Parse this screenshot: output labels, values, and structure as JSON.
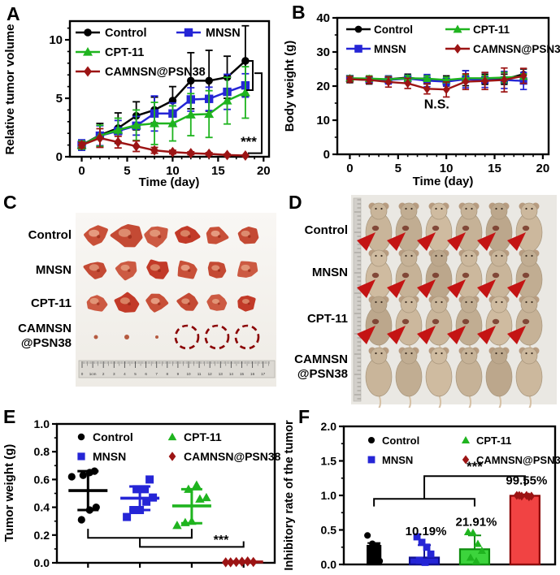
{
  "figure": {
    "background": "#ffffff"
  },
  "panels": {
    "A": {
      "label": "A"
    },
    "B": {
      "label": "B"
    },
    "C": {
      "label": "C",
      "rows": [
        {
          "label": "Control",
          "tumors": 6
        },
        {
          "label": "MNSN",
          "tumors": 6
        },
        {
          "label": "CPT-11",
          "tumors": 6
        },
        {
          "label": "CAMNSN",
          "label2": "@PSN38",
          "tumors": 3,
          "empty_dashed_circles": 3
        }
      ],
      "ruler_labels": [
        "0",
        "1cm",
        "2",
        "3",
        "4",
        "5",
        "6",
        "7",
        "8",
        "9",
        "10",
        "11",
        "12",
        "13",
        "14",
        "15",
        "16",
        "17"
      ]
    },
    "D": {
      "label": "D",
      "rows": [
        {
          "label": "Control",
          "mice": 6,
          "arrows": 6
        },
        {
          "label": "MNSN",
          "mice": 6,
          "arrows": 6
        },
        {
          "label": "CPT-11",
          "mice": 6,
          "arrows": 6
        },
        {
          "label": "CAMNSN",
          "label2": "@PSN38",
          "mice": 6,
          "arrows": 0
        }
      ]
    },
    "E": {
      "label": "E"
    },
    "F": {
      "label": "F"
    }
  },
  "colors": {
    "control": "#000000",
    "mnsn": "#2525d6",
    "cpt11": "#1fb41f",
    "camnsn": "#9c1414",
    "bar_blue_fill": "#2525d6",
    "bar_green_fill": "#3cd43c",
    "bar_red_fill": "#f14343",
    "arrow_red": "#c41414"
  },
  "chart_data": [
    {
      "panel": "A",
      "type": "line",
      "xlabel": "Time (day)",
      "ylabel": "Relative tumor volume",
      "xlim": [
        -1.3,
        20.6
      ],
      "ylim": [
        0,
        11.6
      ],
      "xticks": [
        0,
        5,
        10,
        15,
        20
      ],
      "yticks": [
        0,
        5,
        10
      ],
      "x": [
        0,
        2,
        4,
        6,
        8,
        10,
        12,
        14,
        16,
        18
      ],
      "series": [
        {
          "name": "Control",
          "color": "#000000",
          "marker": "circle",
          "values": [
            1.0,
            1.85,
            2.45,
            3.5,
            4.0,
            4.8,
            6.5,
            6.5,
            6.8,
            8.2
          ],
          "errors": [
            0.4,
            1.0,
            1.3,
            1.2,
            1.1,
            1.2,
            2.4,
            2.6,
            1.8,
            3.0
          ]
        },
        {
          "name": "MNSN",
          "color": "#2525d6",
          "marker": "square",
          "values": [
            1.0,
            1.8,
            2.2,
            2.65,
            3.7,
            3.7,
            4.9,
            4.95,
            5.55,
            6.1
          ],
          "errors": [
            0.45,
            0.85,
            0.9,
            0.8,
            1.5,
            0.9,
            1.0,
            1.0,
            1.5,
            1.0
          ]
        },
        {
          "name": "CPT-11",
          "color": "#1fb41f",
          "marker": "triangle",
          "values": [
            1.0,
            1.8,
            2.3,
            2.7,
            2.85,
            2.85,
            3.6,
            3.65,
            4.8,
            5.5
          ],
          "errors": [
            0.35,
            0.9,
            1.0,
            1.3,
            1.8,
            1.5,
            1.8,
            2.0,
            2.0,
            2.2
          ]
        },
        {
          "name": "CAMNSN@PSN38",
          "color": "#9c1414",
          "marker": "diamond",
          "values": [
            1.0,
            1.6,
            1.25,
            0.9,
            0.55,
            0.4,
            0.3,
            0.25,
            0.15,
            0.1
          ],
          "errors": [
            0.25,
            0.8,
            0.5,
            0.45,
            0.25,
            0.15,
            0.12,
            0.1,
            0.08,
            0.05
          ]
        }
      ],
      "annotations": [
        {
          "text": "***"
        }
      ]
    },
    {
      "panel": "B",
      "type": "line",
      "xlabel": "Time (day)",
      "ylabel": "Body weight (g)",
      "xlim": [
        -1.3,
        20.6
      ],
      "ylim": [
        0,
        40
      ],
      "xticks": [
        0,
        5,
        10,
        15,
        20
      ],
      "yticks": [
        0,
        10,
        20,
        30,
        40
      ],
      "x": [
        0,
        2,
        4,
        6,
        8,
        10,
        12,
        14,
        16,
        18
      ],
      "series": [
        {
          "name": "Control",
          "color": "#000000",
          "marker": "circle",
          "values": [
            22.0,
            21.8,
            22.0,
            22.5,
            21.8,
            21.5,
            22.3,
            22.0,
            22.0,
            23.5
          ],
          "errors": [
            1.0,
            1.2,
            1.0,
            1.0,
            1.2,
            1.5,
            2.2,
            1.5,
            1.5,
            1.5
          ]
        },
        {
          "name": "MNSN",
          "color": "#2525d6",
          "marker": "square",
          "values": [
            22.2,
            21.8,
            21.8,
            22.2,
            21.6,
            21.3,
            22.0,
            21.8,
            21.8,
            21.5
          ],
          "errors": [
            0.8,
            1.0,
            1.2,
            1.0,
            1.8,
            1.2,
            2.5,
            2.2,
            2.5,
            2.5
          ]
        },
        {
          "name": "CPT-11",
          "color": "#1fb41f",
          "marker": "triangle",
          "values": [
            22.3,
            22.2,
            22.0,
            22.3,
            22.2,
            21.8,
            22.3,
            22.3,
            22.5,
            22.8
          ],
          "errors": [
            0.7,
            0.8,
            0.8,
            0.8,
            0.8,
            0.8,
            1.0,
            0.8,
            1.5,
            0.8
          ]
        },
        {
          "name": "CAMNSN@PSN38",
          "color": "#9c1414",
          "marker": "diamond",
          "values": [
            22.0,
            21.8,
            21.2,
            20.8,
            19.2,
            19.0,
            21.3,
            21.5,
            21.8,
            23.0
          ],
          "errors": [
            0.8,
            1.0,
            1.5,
            1.5,
            1.5,
            2.2,
            2.3,
            2.5,
            3.5,
            2.2
          ]
        }
      ],
      "annotations": [
        {
          "text": "N.S.",
          "x": 9.0,
          "y": 13.5
        }
      ]
    },
    {
      "panel": "E",
      "type": "scatter",
      "ylabel": "Tumor weight (g)",
      "ylim": [
        0,
        1.0
      ],
      "yticks": [
        0,
        0.2,
        0.4,
        0.6,
        0.8,
        1.0
      ],
      "ytick_labels": [
        "0.0",
        "0.2",
        "0.4",
        "0.6",
        "0.8",
        "1.0"
      ],
      "groups": [
        {
          "name": "Control",
          "color": "#000000",
          "marker": "circle",
          "points": [
            0.62,
            0.31,
            0.38,
            0.4,
            0.63,
            0.65,
            0.66
          ],
          "mean": 0.52,
          "err_low": 0.38,
          "err_high": 0.66
        },
        {
          "name": "MNSN",
          "color": "#2525d6",
          "marker": "square",
          "points": [
            0.33,
            0.38,
            0.38,
            0.44,
            0.47,
            0.53,
            0.53,
            0.6
          ],
          "mean": 0.465,
          "err_low": 0.38,
          "err_high": 0.55
        },
        {
          "name": "CPT-11",
          "color": "#1fb41f",
          "marker": "triangle",
          "points": [
            0.27,
            0.29,
            0.3,
            0.46,
            0.47,
            0.53,
            0.56
          ],
          "mean": 0.41,
          "err_low": 0.285,
          "err_high": 0.53
        },
        {
          "name": "CAMNSN@PSN38",
          "color": "#9c1414",
          "marker": "diamond",
          "points": [
            0.004,
            0.006,
            0.008,
            0.01,
            0.006,
            0.004
          ],
          "mean": 0.006,
          "err_low": 0.002,
          "err_high": 0.01
        }
      ],
      "annotations": [
        {
          "text": "***"
        }
      ]
    },
    {
      "panel": "F",
      "type": "bar",
      "ylabel": "Inhibitory rate of the tumor",
      "ylim": [
        0,
        2.0
      ],
      "yticks": [
        0,
        0.5,
        1.0,
        1.5,
        2.0
      ],
      "ytick_labels": [
        "0.0",
        "0.5",
        "1.0",
        "1.5",
        "2.0"
      ],
      "groups": [
        {
          "name": "Control",
          "fill": "#000000",
          "stroke": "#000000",
          "color": "#000000",
          "marker": "circle",
          "value": 0.27,
          "err": 0.04,
          "points": [
            0.42,
            0.3,
            0.27,
            0.2,
            0.1,
            0.05
          ],
          "label": ""
        },
        {
          "name": "MNSN",
          "fill": "#2525d6",
          "stroke": "#0f0f8f",
          "color": "#2525d6",
          "marker": "square",
          "value": 0.1,
          "err": 0.18,
          "points": [
            0.4,
            0.32,
            0.25,
            0.15,
            0.06,
            0.03
          ],
          "label": "10.19%"
        },
        {
          "name": "CPT-11",
          "fill": "#3cd43c",
          "stroke": "#0d8c0d",
          "color": "#1fb41f",
          "marker": "triangle",
          "value": 0.22,
          "err": 0.2,
          "points": [
            0.47,
            0.46,
            0.3,
            0.2,
            0.1,
            0.05
          ],
          "label": "21.91%"
        },
        {
          "name": "CAMNSN@PSN38",
          "fill": "#f14343",
          "stroke": "#8b0505",
          "color": "#9c1414",
          "marker": "diamond",
          "value": 0.995,
          "err": 0.02,
          "points": [
            1.0,
            0.99,
            1.0,
            0.99,
            1.0,
            0.98
          ],
          "label": "99.55%"
        }
      ],
      "annotations": [
        {
          "text": "***"
        }
      ]
    }
  ]
}
